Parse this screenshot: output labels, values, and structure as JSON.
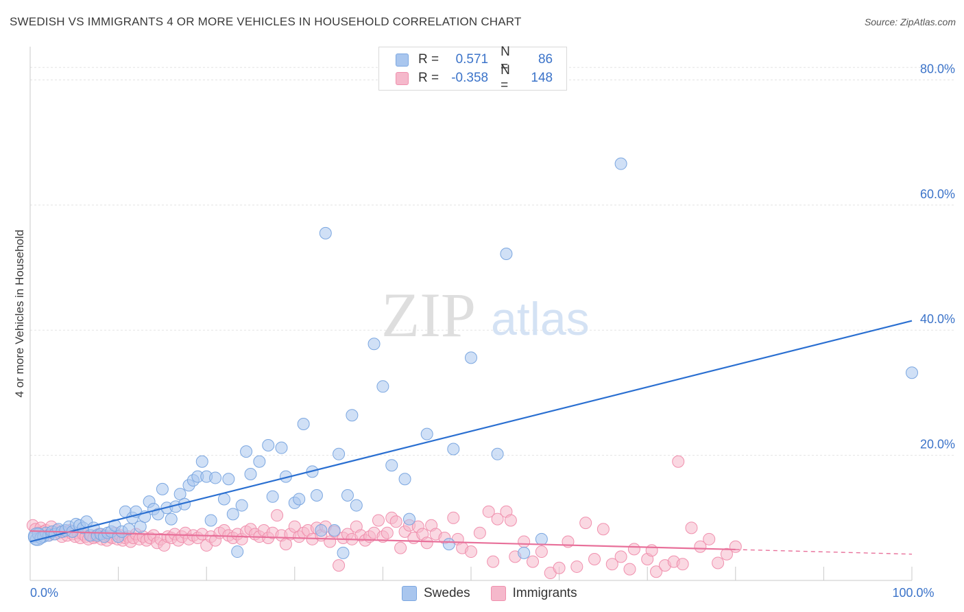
{
  "header": {
    "title": "SWEDISH VS IMMIGRANTS 4 OR MORE VEHICLES IN HOUSEHOLD CORRELATION CHART",
    "source": "Source: ZipAtlas.com"
  },
  "watermark": {
    "zip": "ZIP",
    "atlas": "atlas"
  },
  "legend_top": [
    {
      "r_label": "R =",
      "r_value": "0.571",
      "n_label": "N =",
      "n_value": "86"
    },
    {
      "r_label": "R =",
      "r_value": "-0.358",
      "n_label": "N =",
      "n_value": "148"
    }
  ],
  "legend_bottom": [
    {
      "label": "Swedes"
    },
    {
      "label": "Immigrants"
    }
  ],
  "colors": {
    "swedes_fill": "#a9c6ee",
    "swedes_stroke": "#7aa6e0",
    "swedes_line": "#2a6fd1",
    "immigrants_fill": "#f5b8cb",
    "immigrants_stroke": "#f08fad",
    "immigrants_line": "#e8709a",
    "tick_text": "#3b73c9"
  },
  "chart_data": {
    "type": "scatter",
    "title": "SWEDISH VS IMMIGRANTS 4 OR MORE VEHICLES IN HOUSEHOLD CORRELATION CHART",
    "xlabel": "",
    "ylabel": "4 or more Vehicles in Household",
    "xlim": [
      0,
      100
    ],
    "ylim": [
      0,
      84
    ],
    "x_tick_labels": [
      {
        "value": 0,
        "label": "0.0%"
      },
      {
        "value": 100,
        "label": "100.0%"
      }
    ],
    "y_tick_labels": [
      {
        "value": 20,
        "label": "20.0%"
      },
      {
        "value": 40,
        "label": "40.0%"
      },
      {
        "value": 60,
        "label": "60.0%"
      },
      {
        "value": 80,
        "label": "80.0%"
      }
    ],
    "x_minor_ticks": [
      10,
      20,
      30,
      40,
      50,
      60,
      70,
      80,
      90,
      100
    ],
    "grid": true,
    "series": [
      {
        "name": "Swedes",
        "r": 0.571,
        "n": 86,
        "trend": {
          "x": [
            0,
            100
          ],
          "y": [
            6.2,
            41.5
          ],
          "dashed_from": null
        },
        "points": [
          [
            0.5,
            7.0
          ],
          [
            0.7,
            6.6
          ],
          [
            0.9,
            7.4
          ],
          [
            1.2,
            6.8
          ],
          [
            1.5,
            7.0
          ],
          [
            1.8,
            7.6
          ],
          [
            2.1,
            7.2
          ],
          [
            2.5,
            7.8
          ],
          [
            2.8,
            7.4
          ],
          [
            3.2,
            8.2
          ],
          [
            3.6,
            7.8
          ],
          [
            4.0,
            8.0
          ],
          [
            4.4,
            8.6
          ],
          [
            4.8,
            7.8
          ],
          [
            5.2,
            9.0
          ],
          [
            5.6,
            8.8
          ],
          [
            6.0,
            8.4
          ],
          [
            6.4,
            9.4
          ],
          [
            6.8,
            7.2
          ],
          [
            7.2,
            8.4
          ],
          [
            7.6,
            7.2
          ],
          [
            8.0,
            7.4
          ],
          [
            8.4,
            7.0
          ],
          [
            8.8,
            7.6
          ],
          [
            9.2,
            7.8
          ],
          [
            9.6,
            8.8
          ],
          [
            10.0,
            7.0
          ],
          [
            10.4,
            7.8
          ],
          [
            10.8,
            11.0
          ],
          [
            11.2,
            8.2
          ],
          [
            11.6,
            10.0
          ],
          [
            12.0,
            11.0
          ],
          [
            12.5,
            8.6
          ],
          [
            13.0,
            10.2
          ],
          [
            13.5,
            12.6
          ],
          [
            14.0,
            11.4
          ],
          [
            14.5,
            10.6
          ],
          [
            15.0,
            14.6
          ],
          [
            15.5,
            11.6
          ],
          [
            16.0,
            9.8
          ],
          [
            16.5,
            11.8
          ],
          [
            17.0,
            13.8
          ],
          [
            17.5,
            12.2
          ],
          [
            18.0,
            15.2
          ],
          [
            18.5,
            16.0
          ],
          [
            19.0,
            16.6
          ],
          [
            19.5,
            19.0
          ],
          [
            20.0,
            16.6
          ],
          [
            20.5,
            9.6
          ],
          [
            21.0,
            16.4
          ],
          [
            22.0,
            13.0
          ],
          [
            22.5,
            16.2
          ],
          [
            23.0,
            10.6
          ],
          [
            24.0,
            12.0
          ],
          [
            24.5,
            20.6
          ],
          [
            25.0,
            17.0
          ],
          [
            26.0,
            19.0
          ],
          [
            27.0,
            21.6
          ],
          [
            27.5,
            13.4
          ],
          [
            28.5,
            21.2
          ],
          [
            29.0,
            16.6
          ],
          [
            30.0,
            12.4
          ],
          [
            30.5,
            13.0
          ],
          [
            31.0,
            25.0
          ],
          [
            32.0,
            17.4
          ],
          [
            32.5,
            13.6
          ],
          [
            33.0,
            8.0
          ],
          [
            33.5,
            55.5
          ],
          [
            34.5,
            8.0
          ],
          [
            35.0,
            20.2
          ],
          [
            35.5,
            4.4
          ],
          [
            36.0,
            13.6
          ],
          [
            36.5,
            26.4
          ],
          [
            37.0,
            12.0
          ],
          [
            39.0,
            37.8
          ],
          [
            40.0,
            31.0
          ],
          [
            41.0,
            18.4
          ],
          [
            42.5,
            16.2
          ],
          [
            43.0,
            9.8
          ],
          [
            45.0,
            23.4
          ],
          [
            47.5,
            5.8
          ],
          [
            48.0,
            21.0
          ],
          [
            50.0,
            35.6
          ],
          [
            53.0,
            20.2
          ],
          [
            54.0,
            52.2
          ],
          [
            56.0,
            4.4
          ],
          [
            58.0,
            6.6
          ],
          [
            67.0,
            66.6
          ],
          [
            100.0,
            33.2
          ],
          [
            23.5,
            4.6
          ]
        ]
      },
      {
        "name": "Immigrants",
        "r": -0.358,
        "n": 148,
        "trend": {
          "x": [
            0,
            100
          ],
          "y": [
            7.9,
            4.2
          ],
          "dashed_from": 80
        },
        "points": [
          [
            0.3,
            8.8
          ],
          [
            0.6,
            8.2
          ],
          [
            0.9,
            7.6
          ],
          [
            1.2,
            8.4
          ],
          [
            1.5,
            7.8
          ],
          [
            1.8,
            8.0
          ],
          [
            2.1,
            7.2
          ],
          [
            2.4,
            8.6
          ],
          [
            2.7,
            7.4
          ],
          [
            3.0,
            8.0
          ],
          [
            3.3,
            7.6
          ],
          [
            3.6,
            7.0
          ],
          [
            3.9,
            7.8
          ],
          [
            4.2,
            7.2
          ],
          [
            4.5,
            8.0
          ],
          [
            4.8,
            7.4
          ],
          [
            5.1,
            7.0
          ],
          [
            5.4,
            7.6
          ],
          [
            5.7,
            6.8
          ],
          [
            6.0,
            7.4
          ],
          [
            6.3,
            7.0
          ],
          [
            6.6,
            6.6
          ],
          [
            6.9,
            7.2
          ],
          [
            7.2,
            6.8
          ],
          [
            7.5,
            7.0
          ],
          [
            7.8,
            7.4
          ],
          [
            8.1,
            6.6
          ],
          [
            8.4,
            7.2
          ],
          [
            8.7,
            6.4
          ],
          [
            9.0,
            7.0
          ],
          [
            9.3,
            6.8
          ],
          [
            9.6,
            7.6
          ],
          [
            9.9,
            6.6
          ],
          [
            10.2,
            7.2
          ],
          [
            10.5,
            6.4
          ],
          [
            10.8,
            6.8
          ],
          [
            11.1,
            7.0
          ],
          [
            11.4,
            6.2
          ],
          [
            11.7,
            6.8
          ],
          [
            12.0,
            7.4
          ],
          [
            12.4,
            6.6
          ],
          [
            12.8,
            7.0
          ],
          [
            13.2,
            6.4
          ],
          [
            13.6,
            6.8
          ],
          [
            14.0,
            7.2
          ],
          [
            14.4,
            6.0
          ],
          [
            14.8,
            6.6
          ],
          [
            15.2,
            5.6
          ],
          [
            15.6,
            7.0
          ],
          [
            16.0,
            6.8
          ],
          [
            16.4,
            7.4
          ],
          [
            16.8,
            6.4
          ],
          [
            17.2,
            7.0
          ],
          [
            17.6,
            7.6
          ],
          [
            18.0,
            6.6
          ],
          [
            18.5,
            7.2
          ],
          [
            19.0,
            6.8
          ],
          [
            19.5,
            7.4
          ],
          [
            20.0,
            5.6
          ],
          [
            20.5,
            7.0
          ],
          [
            21.0,
            6.4
          ],
          [
            21.5,
            7.6
          ],
          [
            22.0,
            8.0
          ],
          [
            22.5,
            7.2
          ],
          [
            23.0,
            6.8
          ],
          [
            23.5,
            7.4
          ],
          [
            24.0,
            6.6
          ],
          [
            24.5,
            7.8
          ],
          [
            25.0,
            8.2
          ],
          [
            25.5,
            7.4
          ],
          [
            26.0,
            7.0
          ],
          [
            26.5,
            8.0
          ],
          [
            27.0,
            6.8
          ],
          [
            27.5,
            7.6
          ],
          [
            28.0,
            10.4
          ],
          [
            28.5,
            7.2
          ],
          [
            29.0,
            5.8
          ],
          [
            29.5,
            7.4
          ],
          [
            30.0,
            8.6
          ],
          [
            30.5,
            7.0
          ],
          [
            31.0,
            7.6
          ],
          [
            31.5,
            8.0
          ],
          [
            32.0,
            6.6
          ],
          [
            32.5,
            8.4
          ],
          [
            33.0,
            7.2
          ],
          [
            33.5,
            8.6
          ],
          [
            34.0,
            6.2
          ],
          [
            34.5,
            7.8
          ],
          [
            35.0,
            2.4
          ],
          [
            35.5,
            6.8
          ],
          [
            36.0,
            7.4
          ],
          [
            36.5,
            6.6
          ],
          [
            37.0,
            8.6
          ],
          [
            37.5,
            7.2
          ],
          [
            38.0,
            6.4
          ],
          [
            38.5,
            7.0
          ],
          [
            39.0,
            7.6
          ],
          [
            39.5,
            9.6
          ],
          [
            40.0,
            7.0
          ],
          [
            40.5,
            7.6
          ],
          [
            41.0,
            10.0
          ],
          [
            41.5,
            9.4
          ],
          [
            42.0,
            5.2
          ],
          [
            42.5,
            7.8
          ],
          [
            43.0,
            8.8
          ],
          [
            43.5,
            6.8
          ],
          [
            44.0,
            8.6
          ],
          [
            44.5,
            7.4
          ],
          [
            45.0,
            6.0
          ],
          [
            45.5,
            8.8
          ],
          [
            46.0,
            7.4
          ],
          [
            47.0,
            6.8
          ],
          [
            48.0,
            10.0
          ],
          [
            48.5,
            6.6
          ],
          [
            49.0,
            5.2
          ],
          [
            50.0,
            4.6
          ],
          [
            51.0,
            7.6
          ],
          [
            52.0,
            11.0
          ],
          [
            52.5,
            3.0
          ],
          [
            53.0,
            9.8
          ],
          [
            54.0,
            11.0
          ],
          [
            54.5,
            9.6
          ],
          [
            55.0,
            3.8
          ],
          [
            56.0,
            6.2
          ],
          [
            57.0,
            3.0
          ],
          [
            58.0,
            4.6
          ],
          [
            59.0,
            1.2
          ],
          [
            60.0,
            2.0
          ],
          [
            61.0,
            6.2
          ],
          [
            62.0,
            2.2
          ],
          [
            63.0,
            9.2
          ],
          [
            64.0,
            3.4
          ],
          [
            65.0,
            8.2
          ],
          [
            66.0,
            2.6
          ],
          [
            67.0,
            3.8
          ],
          [
            68.0,
            1.8
          ],
          [
            68.5,
            5.0
          ],
          [
            70.0,
            3.4
          ],
          [
            70.5,
            4.8
          ],
          [
            71.0,
            1.4
          ],
          [
            72.0,
            2.4
          ],
          [
            73.0,
            3.0
          ],
          [
            73.5,
            19.0
          ],
          [
            74.0,
            2.6
          ],
          [
            75.0,
            8.4
          ],
          [
            76.0,
            5.4
          ],
          [
            77.0,
            6.6
          ],
          [
            78.0,
            2.8
          ],
          [
            79.0,
            4.2
          ],
          [
            80.0,
            5.4
          ]
        ]
      }
    ]
  }
}
